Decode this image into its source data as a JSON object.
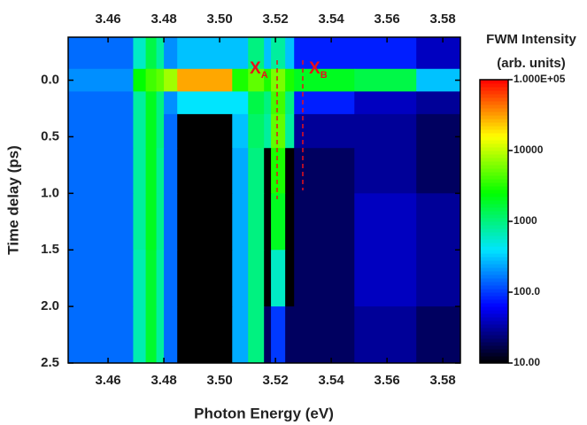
{
  "chart_data": {
    "type": "heatmap",
    "x_label": "Photon Energy (eV)",
    "y_label": "Time delay (ps)",
    "xlim": [
      3.4457,
      3.5863
    ],
    "xticks": [
      3.46,
      3.48,
      3.5,
      3.52,
      3.54,
      3.56,
      3.58
    ],
    "xtick_labels": [
      "3.46",
      "3.48",
      "3.50",
      "3.52",
      "3.54",
      "3.56",
      "3.58"
    ],
    "ylim": [
      2.5,
      -0.38
    ],
    "yticks": [
      {
        "value": 0,
        "label": "0.0"
      },
      0.5,
      {
        "value": 1,
        "label": "1.0"
      },
      1.5,
      {
        "value": 2,
        "label": "2.0"
      },
      2.5
    ],
    "x_edges": [
      3.4457,
      3.469,
      3.4735,
      3.4773,
      3.48,
      3.4848,
      3.5045,
      3.5102,
      3.5159,
      3.5184,
      3.5235,
      3.5267,
      3.5483,
      3.5705,
      3.5863
    ],
    "y_edges": [
      -0.38,
      -0.1,
      0.1,
      0.3,
      0.6,
      1.0,
      1.5,
      2.0,
      2.5
    ],
    "z": [
      [
        150,
        600,
        1500,
        800,
        200,
        300,
        300,
        1000,
        300,
        800,
        300,
        80,
        80,
        40
      ],
      [
        200,
        2500,
        4000,
        5000,
        8000,
        30000,
        3000,
        5000,
        3000,
        6000,
        3000,
        2000,
        1500,
        300
      ],
      [
        150,
        800,
        2000,
        1000,
        200,
        400,
        400,
        1500,
        1000,
        4000,
        1000,
        80,
        40,
        30
      ],
      [
        150,
        800,
        2000,
        1000,
        150,
        10,
        300,
        1200,
        800,
        5000,
        800,
        30,
        30,
        20
      ],
      [
        150,
        800,
        2000,
        900,
        150,
        10,
        250,
        1000,
        10,
        3000,
        10,
        20,
        30,
        20
      ],
      [
        150,
        800,
        2000,
        900,
        150,
        10,
        250,
        1000,
        10,
        2000,
        10,
        20,
        40,
        30
      ],
      [
        150,
        700,
        1800,
        800,
        150,
        10,
        250,
        1000,
        10,
        600,
        10,
        20,
        40,
        30
      ],
      [
        150,
        700,
        1800,
        800,
        150,
        10,
        250,
        1000,
        20,
        100,
        20,
        20,
        30,
        20
      ]
    ],
    "colorbar_title": [
      "FWM Intensity",
      "(arb. units)"
    ],
    "colorbar_log": true,
    "colorbar_lim": [
      10,
      100000
    ],
    "colorbar_ticks": [
      {
        "value": 10,
        "label": "10.00"
      },
      {
        "value": 100,
        "label": "100.0"
      },
      1000,
      10000,
      {
        "value": 100000,
        "label": "1.000E+05"
      }
    ],
    "colorscale": [
      "#000000",
      "#0000ff",
      "#00e5ff",
      "#00ff00",
      "#ffff00",
      "#ff0000"
    ],
    "annotations": [
      {
        "text": "X",
        "sub": "A"
      },
      {
        "text": "X",
        "sub": "B"
      }
    ],
    "annotation_color": "#e8101a",
    "vlines": [
      3.5206,
      3.5298
    ]
  }
}
